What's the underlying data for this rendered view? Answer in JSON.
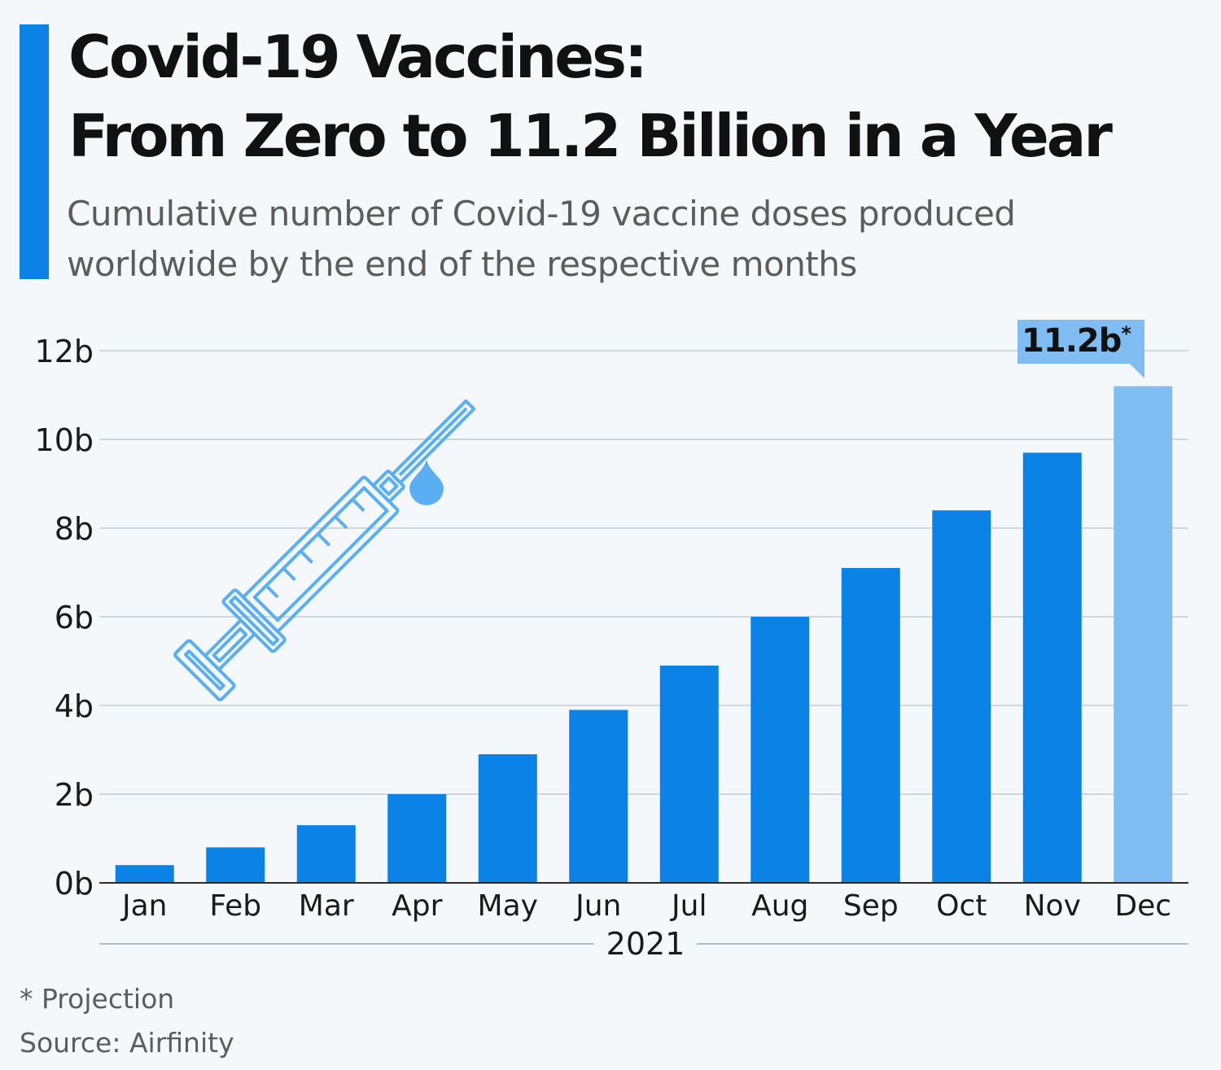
{
  "header": {
    "title_line1": "Covid-19 Vaccines:",
    "title_line2": "From Zero to 11.2 Billion in a Year",
    "subtitle_line1": "Cumulative number of Covid-19 vaccine doses produced",
    "subtitle_line2": "worldwide by the end of the respective months"
  },
  "footer": {
    "note": "* Projection",
    "source": "Source: Airfinity"
  },
  "icons": {
    "illustration": "syringe-icon"
  },
  "colors": {
    "accent": "#0b82e6",
    "bar": "#0b82e6",
    "projection_bar": "#7fbdf2",
    "label_box": "#7fbdf2",
    "grid": "#cfd6dd",
    "syringe": "#5aaef2",
    "background": "#f5f8fb"
  },
  "chart_data": {
    "type": "bar",
    "categories": [
      "Jan",
      "Feb",
      "Mar",
      "Apr",
      "May",
      "Jun",
      "Jul",
      "Aug",
      "Sep",
      "Oct",
      "Nov",
      "Dec"
    ],
    "values": [
      0.4,
      0.8,
      1.3,
      2.0,
      2.9,
      3.9,
      4.9,
      6.0,
      7.1,
      8.4,
      9.7,
      11.2
    ],
    "projected": [
      false,
      false,
      false,
      false,
      false,
      false,
      false,
      false,
      false,
      false,
      false,
      true
    ],
    "yticks": [
      0,
      2,
      4,
      6,
      8,
      10,
      12
    ],
    "ytick_labels": [
      "0b",
      "2b",
      "4b",
      "6b",
      "8b",
      "10b",
      "12b"
    ],
    "ylim": [
      0,
      12
    ],
    "x_group_label": "2021",
    "annotation": {
      "category": "Dec",
      "text": "11.2b",
      "marker": "*"
    },
    "grid": true,
    "title": "Covid-19 Vaccines: From Zero to 11.2 Billion in a Year",
    "subtitle": "Cumulative number of Covid-19 vaccine doses produced worldwide by the end of the respective months"
  }
}
